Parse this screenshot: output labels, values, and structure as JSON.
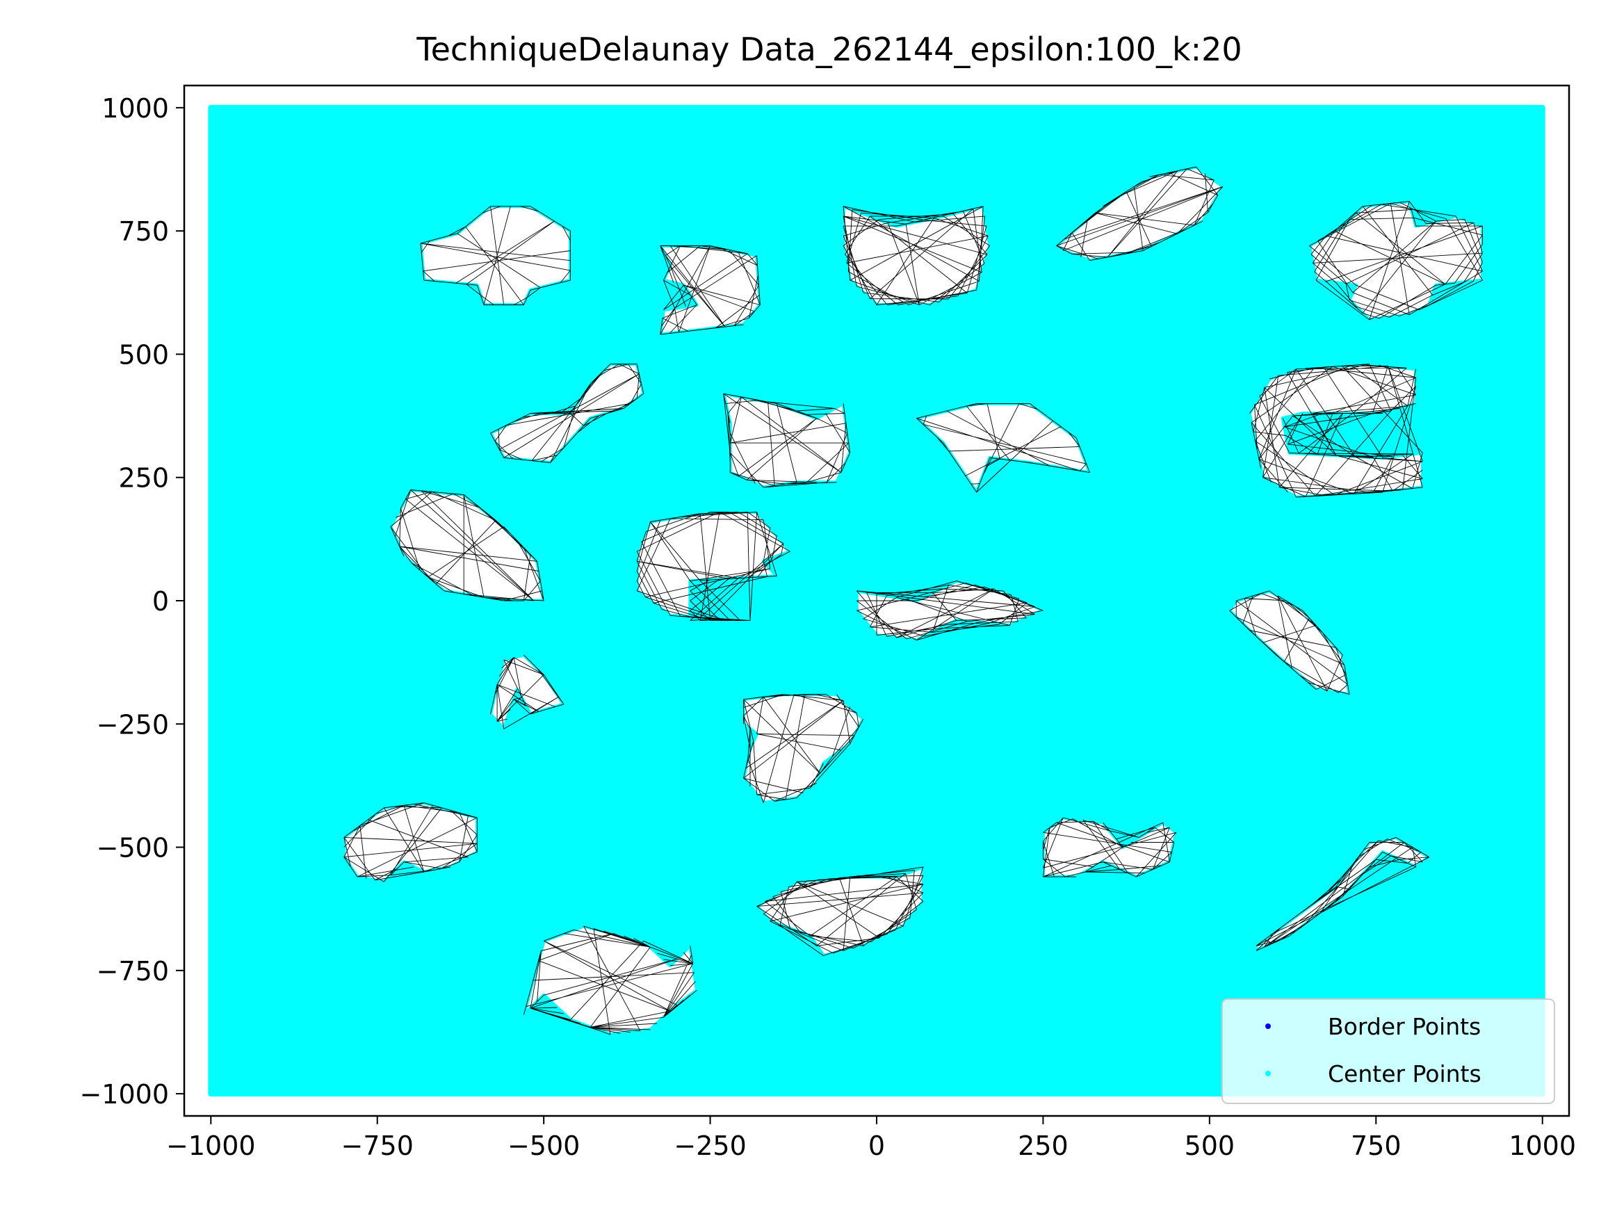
{
  "chart_data": {
    "type": "scatter",
    "title": "TechniqueDelaunay Data_262144_epsilon:100_k:20",
    "xlabel": "",
    "ylabel": "",
    "xlim": [
      -1040,
      1040
    ],
    "ylim": [
      -1045,
      1045
    ],
    "xticks": [
      -1000,
      -750,
      -500,
      -250,
      0,
      250,
      500,
      750,
      1000
    ],
    "yticks": [
      -1000,
      -750,
      -500,
      -250,
      0,
      250,
      500,
      750,
      1000
    ],
    "xtick_labels": [
      "−1000",
      "−750",
      "−500",
      "−250",
      "0",
      "250",
      "500",
      "750",
      "1000"
    ],
    "ytick_labels": [
      "−1000",
      "−750",
      "−500",
      "−250",
      "0",
      "250",
      "500",
      "750",
      "1000"
    ],
    "grid": false,
    "legend_position": "lower-right",
    "point_region": {
      "x": [
        -1000,
        1000
      ],
      "y": [
        -1000,
        1000
      ]
    },
    "series": [
      {
        "name": "Border Points",
        "color": "#0000ff",
        "marker": "dot"
      },
      {
        "name": "Center Points",
        "color": "#00ffff",
        "marker": "dot"
      }
    ],
    "edge_color": "#000000",
    "holes": [
      {
        "points": [
          [
            -685,
            725
          ],
          [
            -630,
            745
          ],
          [
            -580,
            800
          ],
          [
            -520,
            800
          ],
          [
            -460,
            750
          ],
          [
            -460,
            650
          ],
          [
            -520,
            630
          ],
          [
            -530,
            600
          ],
          [
            -590,
            600
          ],
          [
            -600,
            640
          ],
          [
            -680,
            650
          ]
        ]
      },
      {
        "points": [
          [
            -325,
            720
          ],
          [
            -250,
            720
          ],
          [
            -180,
            700
          ],
          [
            -175,
            600
          ],
          [
            -200,
            560
          ],
          [
            -325,
            540
          ],
          [
            -320,
            590
          ],
          [
            -270,
            600
          ],
          [
            -290,
            640
          ],
          [
            -320,
            650
          ],
          [
            -310,
            680
          ]
        ]
      },
      {
        "points": [
          [
            -50,
            800
          ],
          [
            30,
            760
          ],
          [
            100,
            780
          ],
          [
            160,
            800
          ],
          [
            170,
            720
          ],
          [
            150,
            630
          ],
          [
            80,
            600
          ],
          [
            0,
            600
          ],
          [
            -40,
            650
          ],
          [
            -50,
            720
          ]
        ]
      },
      {
        "points": [
          [
            270,
            720
          ],
          [
            340,
            800
          ],
          [
            410,
            860
          ],
          [
            480,
            880
          ],
          [
            520,
            840
          ],
          [
            490,
            770
          ],
          [
            400,
            710
          ],
          [
            320,
            690
          ],
          [
            280,
            710
          ]
        ]
      },
      {
        "points": [
          [
            730,
            800
          ],
          [
            800,
            810
          ],
          [
            810,
            760
          ],
          [
            870,
            780
          ],
          [
            910,
            760
          ],
          [
            910,
            650
          ],
          [
            840,
            640
          ],
          [
            830,
            600
          ],
          [
            800,
            580
          ],
          [
            740,
            570
          ],
          [
            710,
            610
          ],
          [
            720,
            640
          ],
          [
            660,
            650
          ],
          [
            650,
            720
          ],
          [
            700,
            760
          ]
        ]
      },
      {
        "points": [
          [
            -520,
            380
          ],
          [
            -460,
            380
          ],
          [
            -430,
            440
          ],
          [
            -400,
            480
          ],
          [
            -360,
            480
          ],
          [
            -350,
            420
          ],
          [
            -380,
            390
          ],
          [
            -430,
            370
          ],
          [
            -490,
            280
          ],
          [
            -560,
            290
          ],
          [
            -580,
            340
          ]
        ]
      },
      {
        "points": [
          [
            -230,
            420
          ],
          [
            -150,
            400
          ],
          [
            -90,
            370
          ],
          [
            -50,
            400
          ],
          [
            -40,
            300
          ],
          [
            -60,
            240
          ],
          [
            -120,
            240
          ],
          [
            -170,
            230
          ],
          [
            -220,
            260
          ],
          [
            -220,
            360
          ]
        ]
      },
      {
        "points": [
          [
            60,
            370
          ],
          [
            150,
            400
          ],
          [
            230,
            400
          ],
          [
            300,
            330
          ],
          [
            320,
            260
          ],
          [
            230,
            280
          ],
          [
            170,
            290
          ],
          [
            150,
            220
          ],
          [
            100,
            320
          ]
        ]
      },
      {
        "points": [
          [
            630,
            470
          ],
          [
            740,
            480
          ],
          [
            810,
            470
          ],
          [
            810,
            400
          ],
          [
            760,
            380
          ],
          [
            640,
            380
          ],
          [
            610,
            370
          ],
          [
            620,
            300
          ],
          [
            760,
            290
          ],
          [
            820,
            300
          ],
          [
            820,
            230
          ],
          [
            760,
            220
          ],
          [
            630,
            210
          ],
          [
            580,
            250
          ],
          [
            560,
            380
          ],
          [
            590,
            450
          ]
        ]
      },
      {
        "points": [
          [
            -700,
            225
          ],
          [
            -620,
            215
          ],
          [
            -560,
            150
          ],
          [
            -510,
            80
          ],
          [
            -500,
            0
          ],
          [
            -560,
            0
          ],
          [
            -650,
            20
          ],
          [
            -710,
            90
          ],
          [
            -730,
            150
          ]
        ]
      },
      {
        "points": [
          [
            -340,
            160
          ],
          [
            -250,
            180
          ],
          [
            -180,
            180
          ],
          [
            -130,
            100
          ],
          [
            -170,
            80
          ],
          [
            -150,
            50
          ],
          [
            -280,
            40
          ],
          [
            -280,
            -40
          ],
          [
            -190,
            -40
          ],
          [
            -310,
            -30
          ],
          [
            -360,
            20
          ],
          [
            -360,
            100
          ]
        ]
      },
      {
        "points": [
          [
            -30,
            20
          ],
          [
            60,
            0
          ],
          [
            120,
            40
          ],
          [
            190,
            20
          ],
          [
            250,
            -20
          ],
          [
            200,
            -50
          ],
          [
            120,
            -40
          ],
          [
            60,
            -80
          ],
          [
            0,
            -70
          ],
          [
            -30,
            -20
          ]
        ]
      },
      {
        "points": [
          [
            540,
            0
          ],
          [
            590,
            20
          ],
          [
            640,
            -20
          ],
          [
            700,
            -110
          ],
          [
            710,
            -190
          ],
          [
            660,
            -180
          ],
          [
            600,
            -110
          ],
          [
            560,
            -60
          ],
          [
            530,
            -20
          ]
        ]
      },
      {
        "points": [
          [
            -560,
            -120
          ],
          [
            -530,
            -110
          ],
          [
            -500,
            -150
          ],
          [
            -470,
            -210
          ],
          [
            -520,
            -230
          ],
          [
            -540,
            -180
          ],
          [
            -560,
            -260
          ],
          [
            -580,
            -230
          ],
          [
            -570,
            -170
          ]
        ]
      },
      {
        "points": [
          [
            -200,
            -200
          ],
          [
            -140,
            -190
          ],
          [
            -60,
            -190
          ],
          [
            -20,
            -240
          ],
          [
            -40,
            -290
          ],
          [
            -80,
            -330
          ],
          [
            -90,
            -370
          ],
          [
            -120,
            -400
          ],
          [
            -170,
            -410
          ],
          [
            -200,
            -360
          ],
          [
            -190,
            -300
          ],
          [
            -180,
            -270
          ],
          [
            -200,
            -250
          ]
        ]
      },
      {
        "points": [
          [
            -800,
            -480
          ],
          [
            -740,
            -420
          ],
          [
            -680,
            -410
          ],
          [
            -600,
            -440
          ],
          [
            -600,
            -510
          ],
          [
            -640,
            -540
          ],
          [
            -680,
            -550
          ],
          [
            -710,
            -530
          ],
          [
            -740,
            -570
          ],
          [
            -780,
            -560
          ],
          [
            -800,
            -520
          ]
        ]
      },
      {
        "points": [
          [
            250,
            -470
          ],
          [
            280,
            -440
          ],
          [
            340,
            -450
          ],
          [
            370,
            -500
          ],
          [
            430,
            -450
          ],
          [
            450,
            -470
          ],
          [
            440,
            -530
          ],
          [
            390,
            -560
          ],
          [
            340,
            -530
          ],
          [
            300,
            -560
          ],
          [
            250,
            -560
          ]
        ]
      },
      {
        "points": [
          [
            570,
            -700
          ],
          [
            620,
            -650
          ],
          [
            690,
            -580
          ],
          [
            740,
            -490
          ],
          [
            780,
            -480
          ],
          [
            830,
            -520
          ],
          [
            810,
            -540
          ],
          [
            760,
            -510
          ],
          [
            700,
            -600
          ],
          [
            620,
            -680
          ],
          [
            570,
            -710
          ]
        ]
      },
      {
        "points": [
          [
            -180,
            -620
          ],
          [
            -120,
            -570
          ],
          [
            -40,
            -560
          ],
          [
            30,
            -560
          ],
          [
            70,
            -540
          ],
          [
            70,
            -610
          ],
          [
            40,
            -660
          ],
          [
            -20,
            -700
          ],
          [
            -80,
            -720
          ],
          [
            -100,
            -680
          ],
          [
            -160,
            -650
          ]
        ]
      },
      {
        "points": [
          [
            -500,
            -690
          ],
          [
            -440,
            -660
          ],
          [
            -350,
            -690
          ],
          [
            -310,
            -740
          ],
          [
            -280,
            -700
          ],
          [
            -270,
            -790
          ],
          [
            -300,
            -820
          ],
          [
            -340,
            -870
          ],
          [
            -400,
            -880
          ],
          [
            -460,
            -850
          ],
          [
            -500,
            -800
          ],
          [
            -530,
            -840
          ],
          [
            -520,
            -790
          ]
        ]
      }
    ]
  }
}
